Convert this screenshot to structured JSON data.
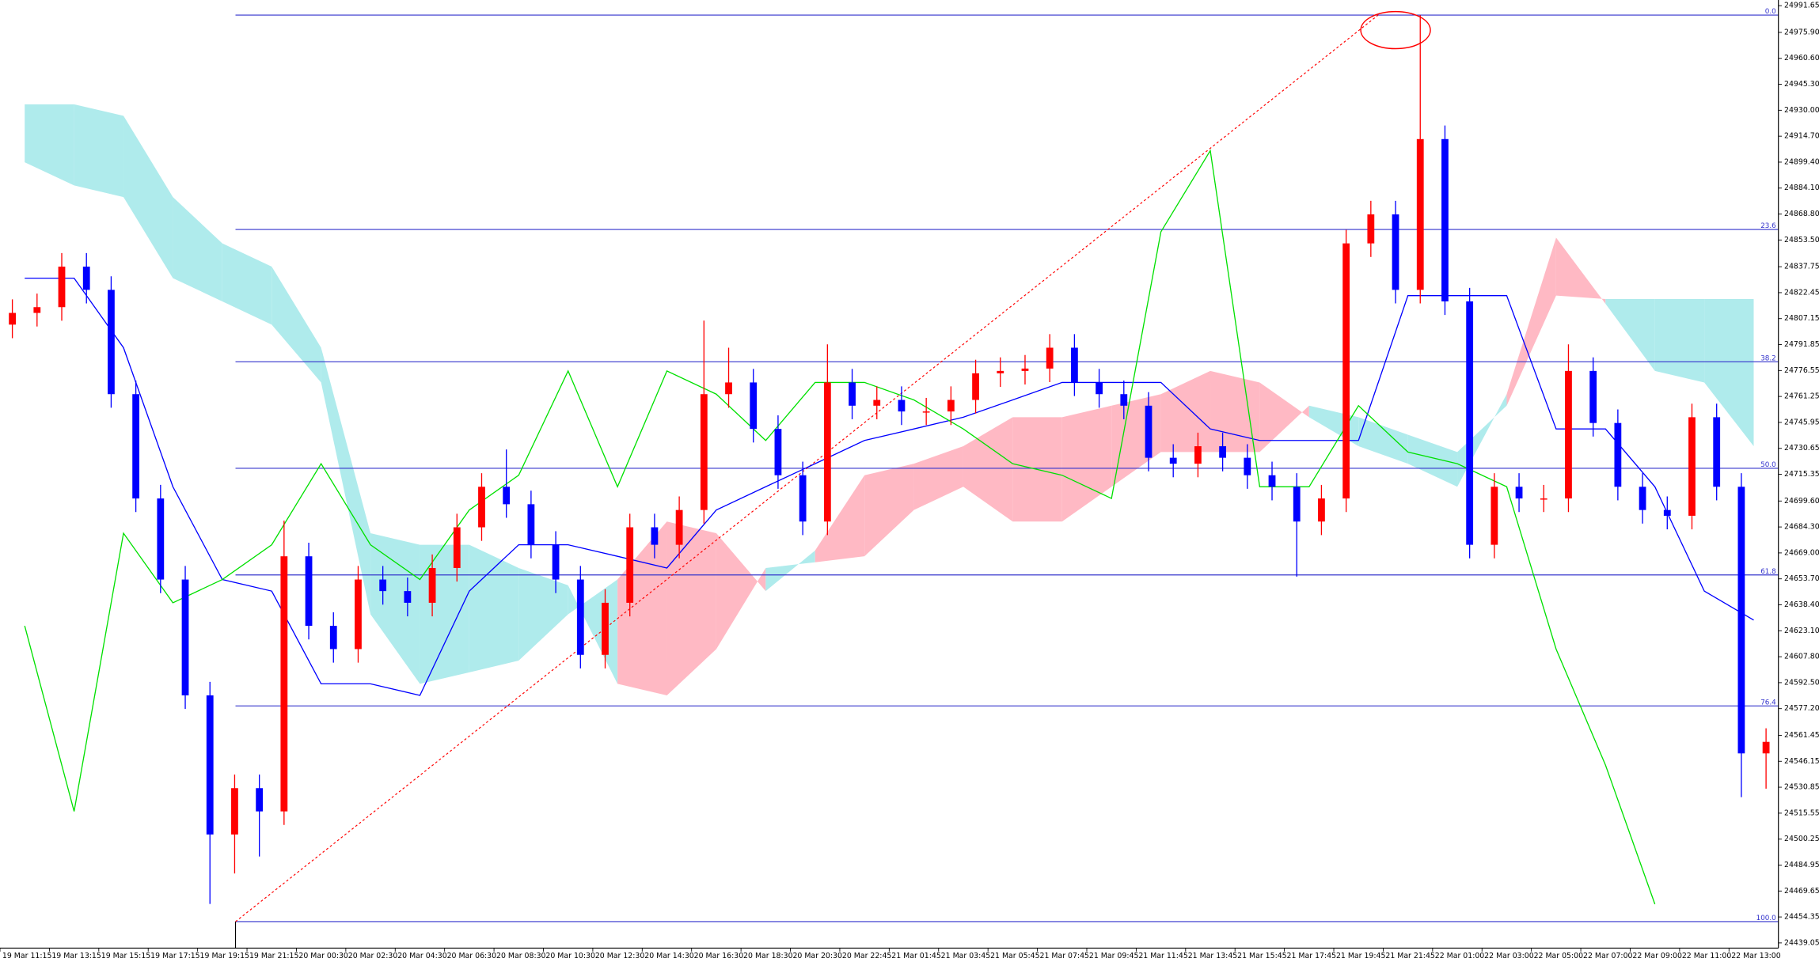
{
  "chart_data": {
    "type": "candlestick",
    "categories": [
      "19 Mar 11:15",
      "19 Mar 13:15",
      "19 Mar 15:15",
      "19 Mar 17:15",
      "19 Mar 19:15",
      "19 Mar 21:15",
      "20 Mar 00:30",
      "20 Mar 02:30",
      "20 Mar 04:30",
      "20 Mar 06:30",
      "20 Mar 08:30",
      "20 Mar 10:30",
      "20 Mar 12:30",
      "20 Mar 14:30",
      "20 Mar 16:30",
      "20 Mar 18:30",
      "20 Mar 20:30",
      "20 Mar 22:45",
      "21 Mar 01:45",
      "21 Mar 03:45",
      "21 Mar 05:45",
      "21 Mar 07:45",
      "21 Mar 09:45",
      "21 Mar 11:45",
      "21 Mar 13:45",
      "21 Mar 15:45",
      "21 Mar 17:45",
      "21 Mar 19:45",
      "21 Mar 21:45",
      "22 Mar 01:00",
      "22 Mar 03:00",
      "22 Mar 05:00",
      "22 Mar 07:00",
      "22 Mar 09:00",
      "22 Mar 11:00",
      "22 Mar 13:00"
    ],
    "ylim": [
      24436,
      24995
    ],
    "yticks": [
      24991.65,
      {
        "value": 24975.9,
        "label": "24975.90"
      },
      {
        "value": 24960.6,
        "label": "24960.60"
      },
      {
        "value": 24945.3,
        "label": "24945.30"
      },
      {
        "value": 24930,
        "label": "24930.00"
      },
      {
        "value": 24914.7,
        "label": "24914.70"
      },
      {
        "value": 24899.4,
        "label": "24899.40"
      },
      {
        "value": 24884.1,
        "label": "24884.10"
      },
      {
        "value": 24868.8,
        "label": "24868.80"
      },
      {
        "value": 24853.5,
        "label": "24853.50"
      },
      24837.75,
      24822.45,
      24807.15,
      24791.85,
      24776.55,
      24761.25,
      24745.95,
      24730.65,
      24715.35,
      {
        "value": 24699.6,
        "label": "24699.60"
      },
      {
        "value": 24684.3,
        "label": "24684.30"
      },
      {
        "value": 24669,
        "label": "24669.00"
      },
      {
        "value": 24653.7,
        "label": "24653.70"
      },
      {
        "value": 24638.4,
        "label": "24638.40"
      },
      {
        "value": 24623.1,
        "label": "24623.10"
      },
      {
        "value": 24607.8,
        "label": "24607.80"
      },
      {
        "value": 24592.5,
        "label": "24592.50"
      },
      {
        "value": 24577.2,
        "label": "24577.20"
      },
      24561.45,
      24546.15,
      24530.85,
      24515.55,
      24500.25,
      24484.95,
      24469.65,
      24454.35,
      24439.05
    ],
    "candles": {
      "up_color": "#ff0000",
      "down_color": "#0000ff",
      "open": [
        24803.6,
        24810.5,
        24813.9,
        24837.8,
        24824.1,
        24762.6,
        24701.1,
        24653.3,
        24585.0,
        24503.0,
        24530.3,
        24516.6,
        24667.0,
        24626.0,
        24612.3,
        24653.3,
        24646.5,
        24639.6,
        24660.1,
        24684.1,
        24708.0,
        24697.7,
        24673.8,
        24653.3,
        24608.9,
        24639.6,
        24684.1,
        24673.8,
        24694.3,
        24762.6,
        24769.5,
        24742.1,
        24714.8,
        24687.5,
        24769.5,
        24755.8,
        24759.2,
        24752.4,
        24752.4,
        24759.2,
        24774.9,
        24776.3,
        24777.7,
        24790.0,
        24769.5,
        24762.6,
        24755.8,
        24725.1,
        24721.6,
        24731.9,
        24725.1,
        24714.8,
        24708.0,
        24687.5,
        24701.1,
        24851.5,
        24868.6,
        24824.1,
        24913.0,
        24817.3,
        24673.8,
        24708.0,
        24701.1,
        24701.1,
        24776.3,
        24745.6,
        24708.0,
        24694.3,
        24690.9,
        24749.0,
        24708.0,
        24550.8
      ],
      "high": [
        24818.5,
        24821.9,
        24845.8,
        24845.8,
        24832.1,
        24770.6,
        24709.1,
        24661.3,
        24593.0,
        24538.3,
        24538.3,
        24688.0,
        24675.0,
        24634.0,
        24661.3,
        24661.3,
        24654.5,
        24668.1,
        24692.1,
        24716.0,
        24730.0,
        24705.7,
        24681.8,
        24661.3,
        24647.6,
        24692.1,
        24692.1,
        24702.3,
        24806.0,
        24790.0,
        24777.5,
        24750.1,
        24722.8,
        24792.0,
        24777.5,
        24767.2,
        24767.2,
        24760.4,
        24767.2,
        24782.9,
        24784.3,
        24785.7,
        24798.0,
        24798.0,
        24777.5,
        24770.6,
        24763.8,
        24733.1,
        24739.9,
        24739.9,
        24733.1,
        24722.8,
        24716.0,
        24709.1,
        24859.5,
        24876.6,
        24876.6,
        24986.0,
        24921.0,
        24825.3,
        24716.0,
        24716.0,
        24709.1,
        24792.0,
        24784.3,
        24753.6,
        24716.0,
        24702.3,
        24757.0,
        24757.0,
        24716.0,
        24565.6
      ],
      "low": [
        24795.6,
        24802.5,
        24805.9,
        24816.1,
        24754.6,
        24693.1,
        24645.3,
        24577.0,
        24462.0,
        24480.0,
        24490.0,
        24508.6,
        24618.0,
        24604.3,
        24604.3,
        24638.5,
        24631.6,
        24631.6,
        24652.1,
        24676.1,
        24689.7,
        24665.8,
        24645.3,
        24600.9,
        24600.9,
        24631.6,
        24665.8,
        24665.8,
        24686.3,
        24754.6,
        24734.1,
        24706.8,
        24679.5,
        24679.5,
        24747.8,
        24747.8,
        24744.4,
        24744.4,
        24744.4,
        24751.2,
        24766.9,
        24768.3,
        24769.7,
        24761.5,
        24754.6,
        24747.8,
        24717.1,
        24713.6,
        24713.6,
        24717.1,
        24706.8,
        24700.0,
        24655.0,
        24679.5,
        24693.1,
        24843.5,
        24816.1,
        24816.1,
        24809.3,
        24665.8,
        24665.8,
        24693.1,
        24693.1,
        24693.1,
        24737.6,
        24700.0,
        24686.3,
        24682.9,
        24682.9,
        24700.0,
        24525.0,
        24530.0
      ],
      "close": [
        24810.5,
        24813.9,
        24837.8,
        24824.1,
        24762.6,
        24701.1,
        24653.3,
        24585.0,
        24503.0,
        24530.3,
        24516.6,
        24667.0,
        24626.0,
        24612.3,
        24653.3,
        24646.5,
        24639.6,
        24660.1,
        24684.1,
        24708.0,
        24697.7,
        24673.8,
        24653.3,
        24608.9,
        24639.6,
        24684.1,
        24673.8,
        24694.3,
        24762.6,
        24769.5,
        24742.1,
        24714.8,
        24687.5,
        24769.5,
        24755.8,
        24759.2,
        24752.4,
        24752.4,
        24759.2,
        24774.9,
        24776.3,
        24777.7,
        24790.0,
        24769.5,
        24762.6,
        24755.8,
        24725.1,
        24721.6,
        24731.9,
        24725.1,
        24714.8,
        24708.0,
        24687.5,
        24701.1,
        24851.5,
        24868.6,
        24824.1,
        24913.0,
        24817.3,
        24673.8,
        24708.0,
        24701.1,
        24701.1,
        24776.3,
        24745.6,
        24708.0,
        24694.3,
        24690.9,
        24749.0,
        24708.0,
        24550.8,
        24557.6
      ]
    },
    "cloud": {
      "bull_color": "#afebec",
      "bear_color": "#ffb9c4",
      "span_a": [
        24933.5,
        24933.5,
        24926.7,
        24878.8,
        24851.5,
        24837.8,
        24790.0,
        24680.6,
        24673.8,
        24673.8,
        24660.1,
        24649.9,
        24591.8,
        24585.0,
        24612.3,
        24660.1,
        24663.5,
        24667.0,
        24694.3,
        24708.0,
        24687.5,
        24687.5,
        24708.0,
        24728.5,
        24728.5,
        24728.5,
        24755.8,
        24749.0,
        24738.7,
        24728.5,
        24755.8,
        24820.7,
        24818.7,
        24818.7,
        24818.7,
        24818.7
      ],
      "span_b": [
        24899.3,
        24885.7,
        24878.8,
        24831.0,
        24817.3,
        24803.6,
        24769.5,
        24632.8,
        24591.8,
        24598.6,
        24605.5,
        24632.8,
        24653.3,
        24687.5,
        24680.6,
        24646.5,
        24670.4,
        24714.8,
        24721.6,
        24731.9,
        24749.0,
        24749.0,
        24755.8,
        24762.6,
        24776.3,
        24769.5,
        24749.0,
        24731.9,
        24721.6,
        24708.0,
        24762.6,
        24854.9,
        24815.9,
        24776.3,
        24769.5,
        24731.9
      ]
    },
    "lines": [
      {
        "color": "#0000ff",
        "values": [
          24831.0,
          24831.0,
          24790.0,
          24708.0,
          24653.3,
          24646.5,
          24591.8,
          24591.8,
          24585.0,
          24646.5,
          24673.8,
          24673.8,
          24667.0,
          24660.1,
          24694.3,
          24708.0,
          24721.6,
          24735.3,
          24742.1,
          24749.0,
          24759.2,
          24769.5,
          24769.5,
          24769.5,
          24742.1,
          24735.3,
          24735.3,
          24735.3,
          24820.7,
          24820.7,
          24820.7,
          24742.1,
          24742.1,
          24708.0,
          24646.5,
          24629.4
        ]
      },
      {
        "color": "#00e000",
        "values": [
          24626.0,
          24516.6,
          24680.6,
          24639.6,
          24653.3,
          24673.8,
          24721.6,
          24673.8,
          24653.3,
          24694.3,
          24714.8,
          24776.3,
          24708.0,
          24776.3,
          24762.6,
          24735.3,
          24769.5,
          24769.5,
          24759.2,
          24742.1,
          24721.6,
          24714.8,
          24701.1,
          24858.3,
          24906.2,
          24708.0,
          24708.0,
          24755.8,
          24728.5,
          24721.6,
          24708.0,
          24612.3,
          24543.9,
          24461.9,
          null,
          null
        ]
      }
    ],
    "fibonacci": {
      "color": "#3333cc",
      "trend_color": "#ff0000",
      "levels": [
        {
          "label": "0.0",
          "value": 24986.1
        },
        {
          "label": "23.6",
          "value": 24859.7
        },
        {
          "label": "38.2",
          "value": 24781.7
        },
        {
          "label": "50.0",
          "value": 24718.9
        },
        {
          "label": "61.8",
          "value": 24656.0
        },
        {
          "label": "76.4",
          "value": 24578.8
        },
        {
          "label": "100.0",
          "value": 24451.6
        }
      ]
    }
  }
}
